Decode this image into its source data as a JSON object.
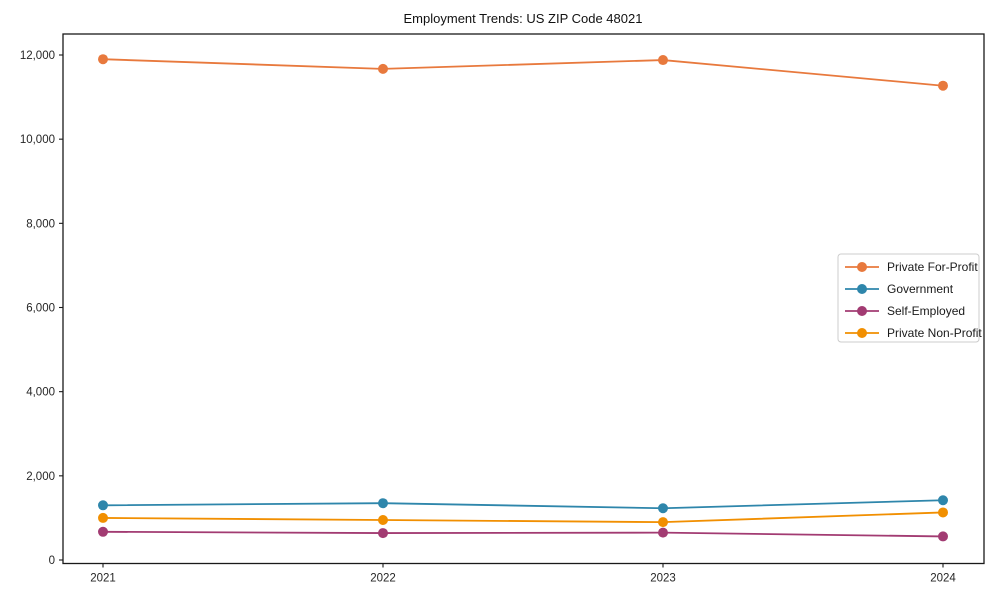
{
  "figure": {
    "background_color": "#ffffff",
    "spine_color": "#1a1a1a",
    "legend": {
      "border_color": "#cccccc",
      "background_color": "#ffffff",
      "position": "right-middle"
    }
  },
  "chart_data": {
    "type": "line",
    "title": "Employment Trends: US ZIP Code 48021",
    "categories": [
      "2021",
      "2022",
      "2023",
      "2024"
    ],
    "series": [
      {
        "name": "Private For-Profit",
        "color": "#E8793D",
        "values": [
          11900,
          11670,
          11880,
          11270
        ]
      },
      {
        "name": "Government",
        "color": "#2E86AB",
        "values": [
          1300,
          1350,
          1230,
          1420
        ]
      },
      {
        "name": "Self-Employed",
        "color": "#A23B72",
        "values": [
          670,
          640,
          650,
          560
        ]
      },
      {
        "name": "Private Non-Profit",
        "color": "#F18F01",
        "values": [
          1000,
          950,
          900,
          1130
        ]
      }
    ],
    "xlabel": "",
    "ylabel": "",
    "ylim": [
      0,
      12500
    ],
    "yticks": [
      0,
      2000,
      4000,
      6000,
      8000,
      10000,
      12000
    ],
    "ytick_labels": [
      "0",
      "2,000",
      "4,000",
      "6,000",
      "8,000",
      "10,000",
      "12,000"
    ],
    "grid": false,
    "legend_entries": [
      "Private For-Profit",
      "Government",
      "Self-Employed",
      "Private Non-Profit"
    ],
    "marker": "circle",
    "line_width": 1.8,
    "marker_radius": 5
  }
}
